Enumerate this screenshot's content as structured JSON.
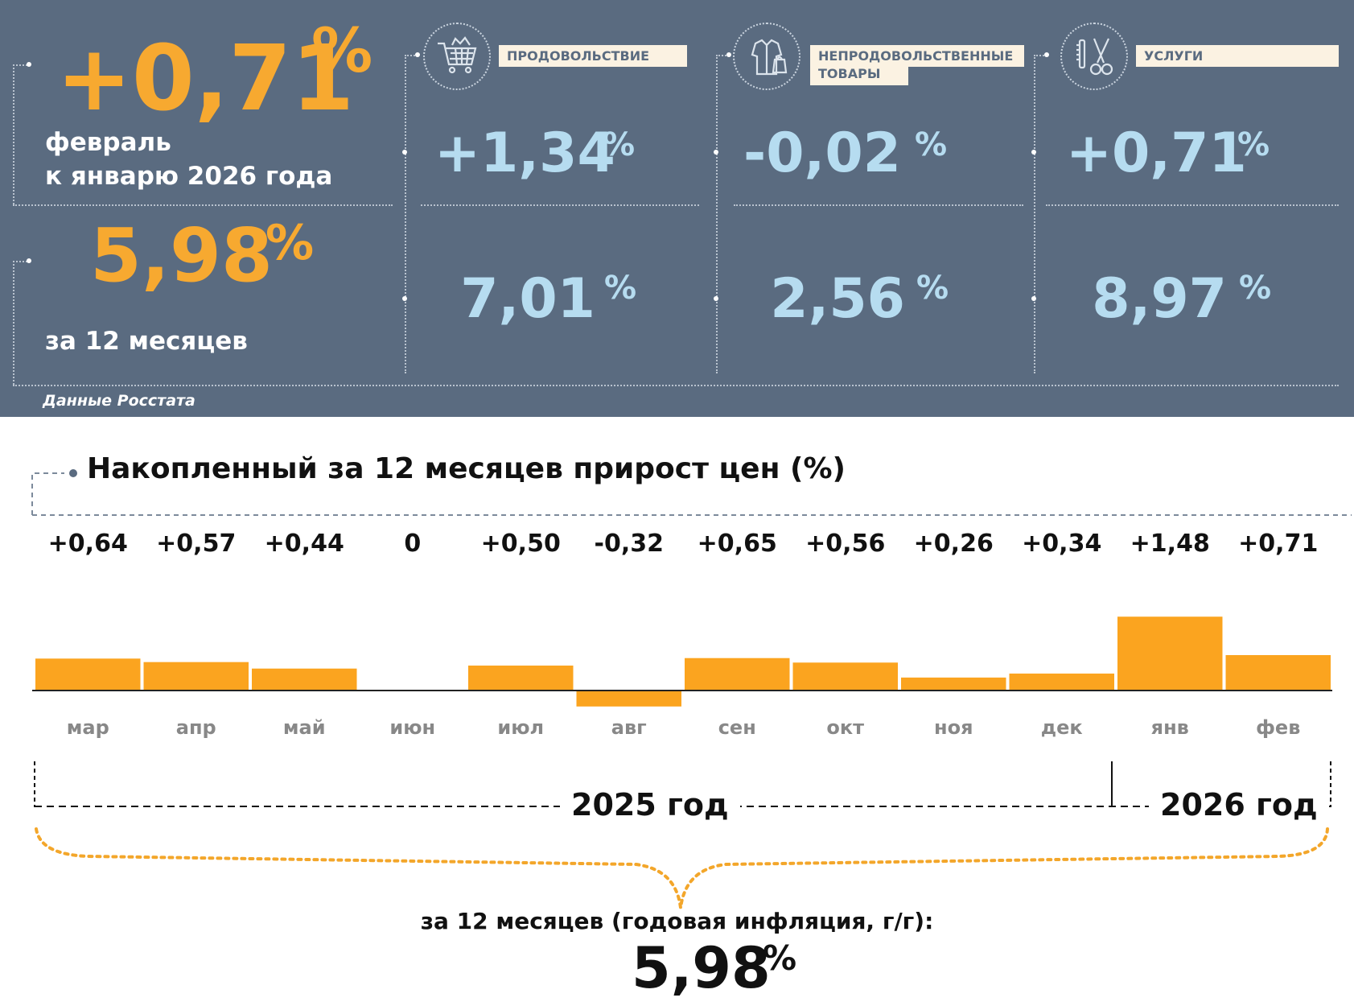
{
  "headline": {
    "monthly_value": "+0,71",
    "monthly_pct": "%",
    "monthly_caption_line1": "февраль",
    "monthly_caption_line2": "к январю 2026 года",
    "annual_value": "5,98",
    "annual_pct": "%",
    "annual_caption": "за 12 месяцев"
  },
  "categories": [
    {
      "icon": "shopping-cart-icon",
      "label_line1": "ПРОДОВОЛЬСТВИЕ",
      "label_line2": "",
      "monthly": "+1,34",
      "annual": "7,01",
      "pct": "%"
    },
    {
      "icon": "clothing-icon",
      "label_line1": "НЕПРОДОВОЛЬСТВЕННЫЕ",
      "label_line2": "ТОВАРЫ",
      "monthly": "-0,02",
      "annual": "2,56",
      "pct": "%"
    },
    {
      "icon": "scissors-icon",
      "label_line1": "УСЛУГИ",
      "label_line2": "",
      "monthly": "+0,71",
      "annual": "8,97",
      "pct": "%"
    }
  ],
  "source": "Данные Росстата",
  "chart_data": {
    "type": "bar",
    "title": "Накопленный за 12 месяцев прирост цен (%)",
    "categories": [
      "мар",
      "апр",
      "май",
      "июн",
      "июл",
      "авг",
      "сен",
      "окт",
      "ноя",
      "дек",
      "янв",
      "фев"
    ],
    "values": [
      0.64,
      0.57,
      0.44,
      0,
      0.5,
      -0.32,
      0.65,
      0.56,
      0.26,
      0.34,
      1.48,
      0.71
    ],
    "value_labels": [
      "+0,64",
      "+0,57",
      "+0,44",
      "0",
      "+0,50",
      "-0,32",
      "+0,65",
      "+0,56",
      "+0,26",
      "+0,34",
      "+1,48",
      "+0,71"
    ],
    "years": [
      "2025 год",
      "2026 год"
    ],
    "bar_color": "#fba41f",
    "annual_caption": "за 12 месяцев (годовая инфляция, г/г):",
    "annual_value": "5,98",
    "annual_pct": "%"
  },
  "colors": {
    "panel_bg": "#5a6b80",
    "accent_orange": "#f7a930",
    "value_blue": "#b6dcf0",
    "label_bg": "#fbf2e2"
  }
}
